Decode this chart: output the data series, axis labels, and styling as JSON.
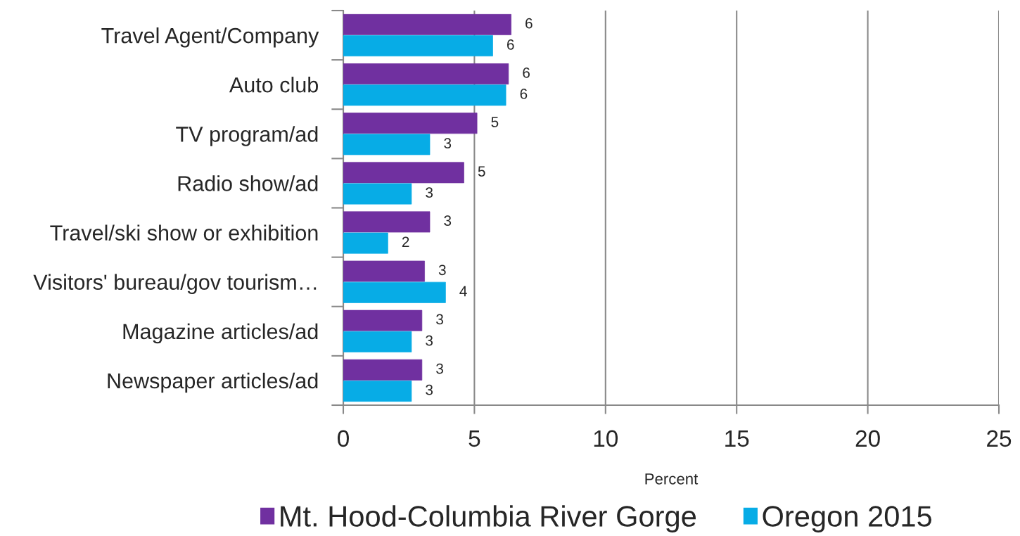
{
  "chart_data": {
    "type": "bar",
    "orientation": "horizontal",
    "categories": [
      "Travel Agent/Company",
      "Auto club",
      "TV program/ad",
      "Radio show/ad",
      "Travel/ski show or exhibition",
      "Visitors' bureau/gov tourism…",
      "Magazine articles/ad",
      "Newspaper articles/ad"
    ],
    "series": [
      {
        "name": "Mt. Hood-Columbia River Gorge",
        "color": "#7030a0",
        "values": [
          6.4,
          6.3,
          5.1,
          4.6,
          3.3,
          3.1,
          3.0,
          3.0
        ],
        "value_labels": [
          "6",
          "6",
          "5",
          "5",
          "3",
          "3",
          "3",
          "3"
        ]
      },
      {
        "name": "Oregon 2015",
        "color": "#07ace6",
        "values": [
          5.7,
          6.2,
          3.3,
          2.6,
          1.7,
          3.9,
          2.6,
          2.6
        ],
        "value_labels": [
          "6",
          "6",
          "3",
          "3",
          "2",
          "4",
          "3",
          "3"
        ]
      }
    ],
    "xlabel": "Percent",
    "xlim": [
      0,
      25
    ],
    "xticks": [
      0,
      5,
      10,
      15,
      20,
      25
    ],
    "grid": "x",
    "legend": "bottom"
  }
}
